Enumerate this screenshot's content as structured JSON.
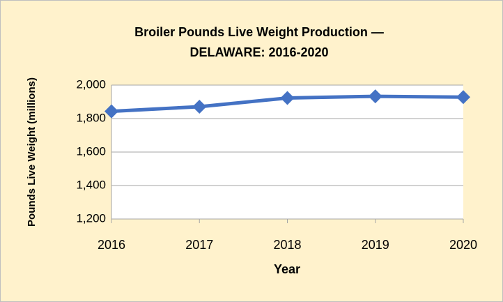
{
  "chart_data": {
    "type": "line",
    "title": [
      "Broiler Pounds Live Weight Production —",
      "DELAWARE: 2016-2020"
    ],
    "xlabel": "Year",
    "ylabel": "Pounds Live Weight (millions)",
    "categories": [
      "2016",
      "2017",
      "2018",
      "2019",
      "2020"
    ],
    "series": [
      {
        "name": "Pounds Live Weight",
        "color": "#4472c4",
        "values": [
          1843,
          1871,
          1923,
          1933,
          1928
        ]
      }
    ],
    "ylim": [
      1200,
      2000
    ],
    "yticks": [
      {
        "value": 1200,
        "label": "1,200"
      },
      {
        "value": 1400,
        "label": "1,400"
      },
      {
        "value": 1600,
        "label": "1,600"
      },
      {
        "value": 1800,
        "label": "1,800"
      },
      {
        "value": 2000,
        "label": "2,000"
      }
    ],
    "grid": true,
    "background": "#fff2cc"
  }
}
